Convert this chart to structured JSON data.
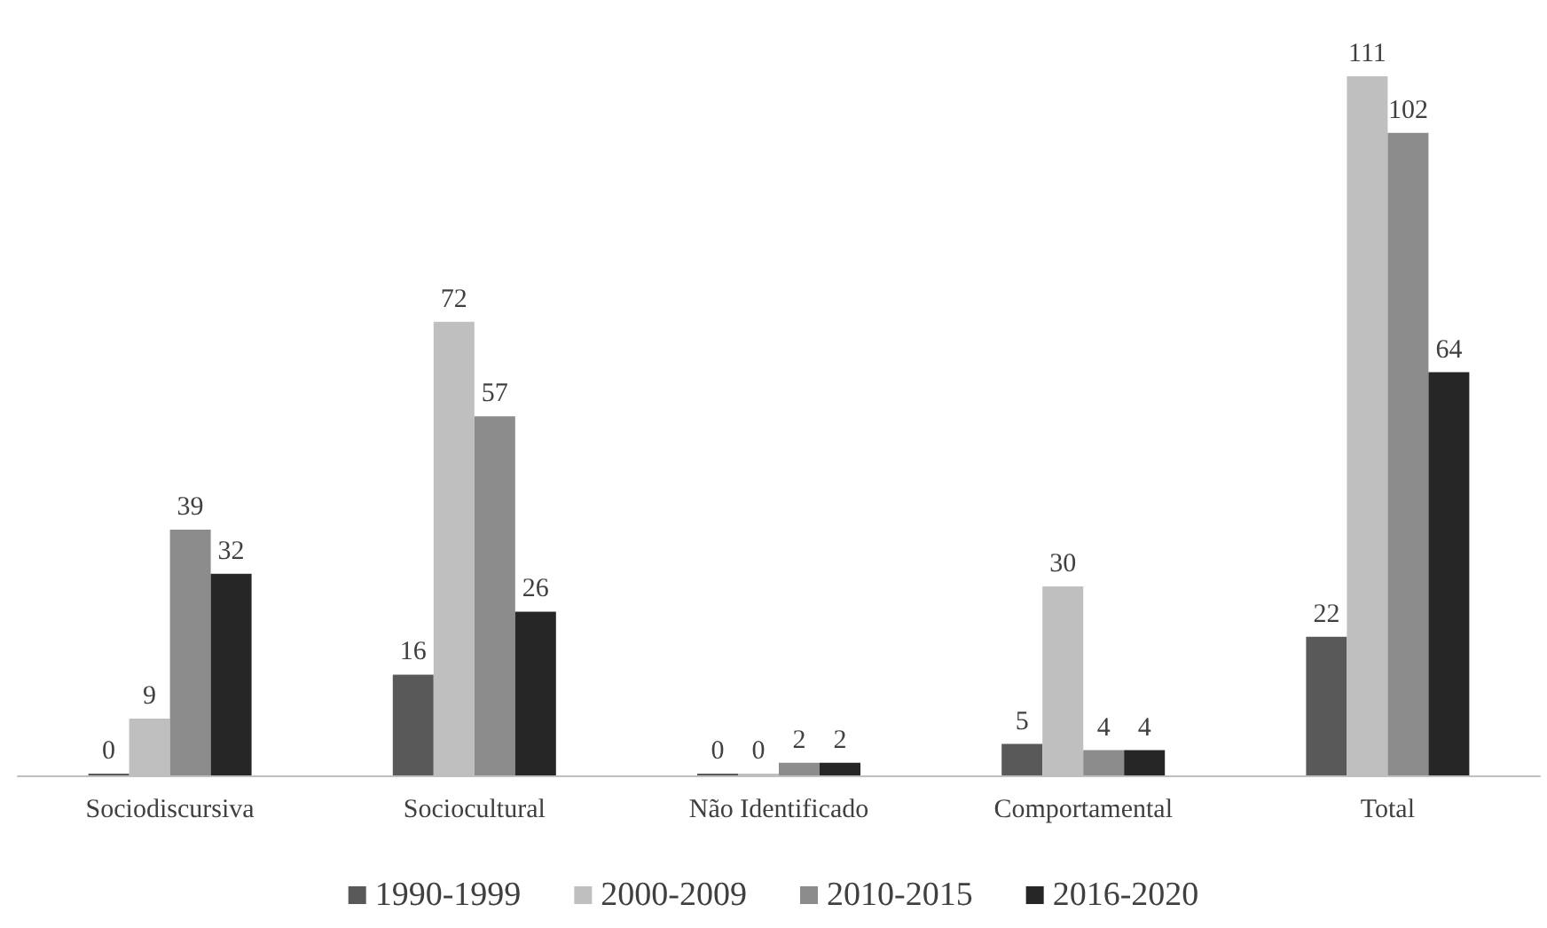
{
  "chart_data": {
    "type": "bar",
    "categories": [
      "Sociodiscursiva",
      "Sociocultural",
      "Não Identificado",
      "Comportamental",
      "Total"
    ],
    "series": [
      {
        "name": "1990-1999",
        "color": "#595959",
        "values": [
          0,
          16,
          0,
          5,
          22
        ]
      },
      {
        "name": "2000-2009",
        "color": "#bfbfbf",
        "values": [
          9,
          72,
          0,
          30,
          111
        ]
      },
      {
        "name": "2010-2015",
        "color": "#8c8c8c",
        "values": [
          39,
          57,
          2,
          4,
          102
        ]
      },
      {
        "name": "2016-2020",
        "color": "#262626",
        "values": [
          32,
          26,
          2,
          4,
          64
        ]
      }
    ],
    "data_labels": true,
    "legend": "bottom"
  }
}
